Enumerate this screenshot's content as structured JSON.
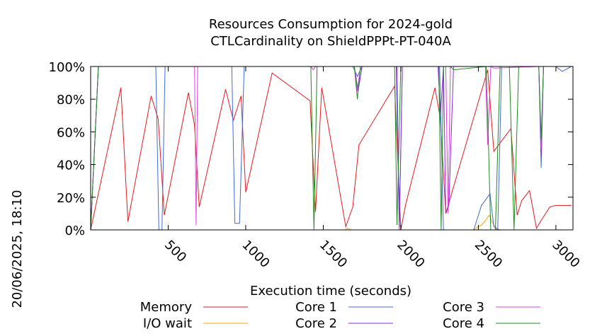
{
  "side_label": "20/06/2025, 18:10",
  "chart_data": {
    "type": "line",
    "title": "Resources Consumption for 2024-gold",
    "subtitle": "CTLCardinality on ShieldPPPt-PT-040A",
    "xlabel": "Execution time (seconds)",
    "ylabel": "",
    "xlim": [
      0,
      3110
    ],
    "ylim": [
      0,
      100
    ],
    "x_ticks": [
      {
        "value": 500,
        "label": "500"
      },
      {
        "value": 1000,
        "label": "1000"
      },
      {
        "value": 1500,
        "label": "1500"
      },
      {
        "value": 2000,
        "label": "2000"
      },
      {
        "value": 2500,
        "label": "2500"
      },
      {
        "value": 3000,
        "label": "3000"
      }
    ],
    "y_ticks": [
      {
        "value": 0,
        "label": "0%"
      },
      {
        "value": 20,
        "label": "20%"
      },
      {
        "value": 40,
        "label": "40%"
      },
      {
        "value": 60,
        "label": "60%"
      },
      {
        "value": 80,
        "label": "80%"
      },
      {
        "value": 100,
        "label": "100%"
      }
    ],
    "grid": false,
    "legend_position": "bottom",
    "series": [
      {
        "name": "Memory",
        "color": "#e8191c",
        "x": [
          0,
          195,
          240,
          390,
          435,
          475,
          630,
          670,
          700,
          870,
          920,
          970,
          1000,
          1170,
          1415,
          1450,
          1490,
          1645,
          1690,
          1730,
          1960,
          2000,
          2030,
          2220,
          2255,
          2290,
          2560,
          2600,
          2630,
          2710,
          2750,
          2780,
          2830,
          2875,
          2900,
          2960,
          3000,
          3050,
          3100
        ],
        "y": [
          0,
          87,
          5,
          82,
          68,
          9,
          84,
          64,
          14,
          86,
          67,
          82,
          23,
          96,
          79,
          11,
          87,
          2,
          14,
          52,
          88,
          0,
          15,
          87,
          68,
          10,
          98,
          48,
          52,
          62,
          9,
          18,
          24,
          1,
          5,
          14,
          15,
          15,
          15
        ]
      },
      {
        "name": "I/O wait",
        "color": "#f0a800",
        "x": [
          0,
          1640,
          1660,
          1680,
          2440,
          2470,
          2485,
          2500,
          2520,
          2540,
          2555,
          2570,
          2585,
          2600,
          2620,
          2640,
          3100
        ],
        "y": [
          0,
          0,
          1,
          0,
          0,
          0,
          1,
          2,
          3,
          5,
          7,
          9,
          6,
          3,
          1,
          0,
          0
        ]
      },
      {
        "name": "Core 1",
        "color": "#3e6cd8",
        "x": [
          0,
          50,
          420,
          440,
          460,
          480,
          910,
          930,
          960,
          990,
          1690,
          1720,
          1750,
          1970,
          1990,
          2010,
          2250,
          2275,
          2300,
          2440,
          2470,
          2520,
          2575,
          2600,
          2625,
          2650,
          2700,
          2740,
          2890,
          2905,
          2920,
          3000,
          3040,
          3100
        ],
        "y": [
          0,
          100,
          100,
          0,
          0,
          100,
          100,
          4,
          4,
          100,
          100,
          94,
          100,
          100,
          2,
          100,
          100,
          0,
          0,
          0,
          0,
          15,
          22,
          2,
          0,
          100,
          100,
          100,
          100,
          38,
          100,
          100,
          97,
          100
        ]
      },
      {
        "name": "Core 2",
        "color": "#8b2be0",
        "x": [
          0,
          50,
          1700,
          1725,
          1750,
          1975,
          1990,
          2010,
          2240,
          2255,
          2275,
          2290,
          2310,
          2340,
          2690,
          2710,
          2730,
          2890,
          2905,
          2920,
          3100
        ],
        "y": [
          0,
          100,
          100,
          85,
          100,
          100,
          0,
          100,
          100,
          70,
          100,
          10,
          15,
          100,
          100,
          100,
          100,
          100,
          45,
          100,
          100
        ]
      },
      {
        "name": "Core 3",
        "color": "#e040e0",
        "x": [
          0,
          50,
          670,
          680,
          690,
          1420,
          1435,
          1450,
          1700,
          1720,
          1740,
          2290,
          2305,
          2320,
          2545,
          2560,
          2580,
          2600,
          2890,
          2905,
          2920,
          3100
        ],
        "y": [
          0,
          100,
          100,
          3,
          100,
          100,
          98,
          100,
          100,
          85,
          100,
          100,
          10,
          100,
          100,
          52,
          100,
          99,
          100,
          50,
          100,
          100
        ]
      },
      {
        "name": "Core 4",
        "color": "#1e8a1e",
        "x": [
          0,
          50,
          1420,
          1440,
          1460,
          1700,
          1720,
          1740,
          1960,
          1975,
          2000,
          2020,
          2245,
          2260,
          2275,
          2320,
          2340,
          2550,
          2560,
          2580,
          2610,
          2640,
          2700,
          2730,
          2760,
          2890,
          2905,
          2920,
          3100
        ],
        "y": [
          0,
          100,
          100,
          0,
          100,
          100,
          80,
          100,
          100,
          3,
          100,
          100,
          100,
          0,
          100,
          100,
          98,
          100,
          70,
          0,
          0,
          100,
          100,
          0,
          100,
          100,
          55,
          100,
          100
        ]
      }
    ]
  }
}
